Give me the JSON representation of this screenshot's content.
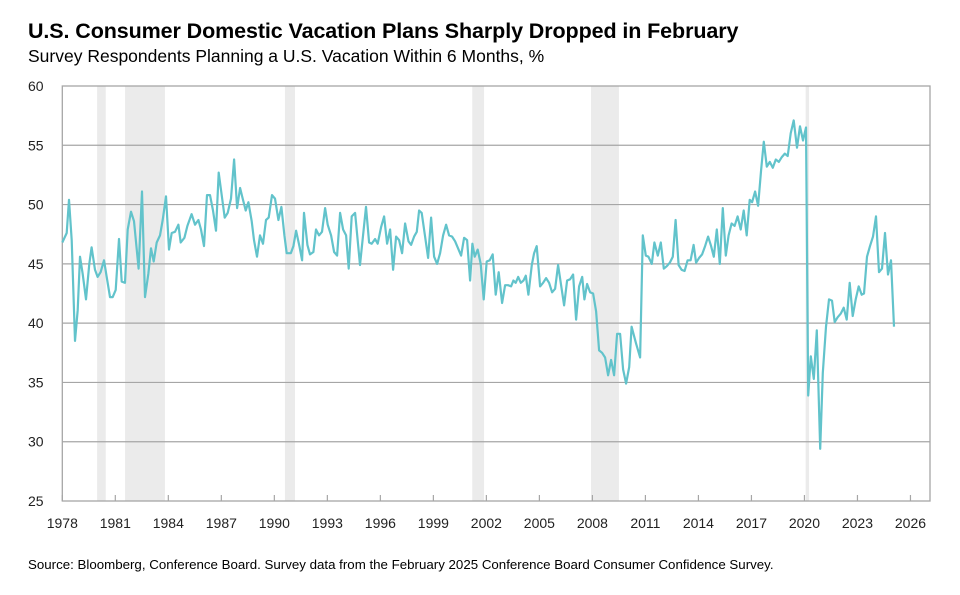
{
  "title": "U.S. Consumer Domestic Vacation Plans Sharply Dropped in February",
  "subtitle": "Survey Respondents Planning a U.S. Vacation Within 6 Months, %",
  "source": "Source: Bloomberg, Conference Board. Survey data from the February 2025 Conference Board Consumer Confidence Survey.",
  "chart_data": {
    "type": "line",
    "title": "U.S. Consumer Domestic Vacation Plans Sharply Dropped in February",
    "subtitle": "Survey Respondents Planning a U.S. Vacation Within 6 Months, %",
    "xlabel": "",
    "ylabel": "",
    "xlim": [
      1978,
      2027.1
    ],
    "ylim": [
      25,
      60
    ],
    "x_ticks": [
      1978,
      1981,
      1984,
      1987,
      1990,
      1993,
      1996,
      1999,
      2002,
      2005,
      2008,
      2011,
      2014,
      2017,
      2020,
      2023,
      2026
    ],
    "x_tick_labels": [
      "1978",
      "1981",
      "1984",
      "1987",
      "1990",
      "1993",
      "1996",
      "1999",
      "2002",
      "2005",
      "2008",
      "2011",
      "2014",
      "2017",
      "2020",
      "2023",
      "2026"
    ],
    "y_ticks": [
      25,
      30,
      35,
      40,
      45,
      50,
      55,
      60
    ],
    "y_tick_labels": [
      "25",
      "30",
      "35",
      "40",
      "45",
      "50",
      "55",
      "60"
    ],
    "grid": "horizontal",
    "line_color": "#62c3cb",
    "recession_color": "#ebebeb",
    "recession_bands": [
      [
        1979.97,
        1980.46
      ],
      [
        1981.55,
        1983.81
      ],
      [
        1990.6,
        1991.17
      ],
      [
        2001.2,
        2001.87
      ],
      [
        2007.92,
        2009.5
      ],
      [
        2020.07,
        2020.26
      ]
    ],
    "series": [
      {
        "x": [
          1978.0,
          1978.25,
          1978.38,
          1978.53,
          1978.72,
          1978.87,
          1979.0,
          1979.15,
          1979.34,
          1979.53,
          1979.66,
          1979.85,
          1980.0,
          1980.17,
          1980.36,
          1980.51,
          1980.7,
          1980.85,
          1981.02,
          1981.21,
          1981.36,
          1981.55,
          1981.7,
          1981.89,
          1982.06,
          1982.32,
          1982.51,
          1982.68,
          1982.87,
          1983.02,
          1983.17,
          1983.34,
          1983.53,
          1983.68,
          1983.87,
          1984.04,
          1984.19,
          1984.38,
          1984.57,
          1984.7,
          1984.91,
          1985.08,
          1985.32,
          1985.51,
          1985.7,
          1985.85,
          1986.02,
          1986.19,
          1986.36,
          1986.53,
          1986.7,
          1986.85,
          1987.02,
          1987.19,
          1987.36,
          1987.55,
          1987.72,
          1987.89,
          1988.06,
          1988.21,
          1988.38,
          1988.53,
          1988.72,
          1988.85,
          1989.02,
          1989.19,
          1989.36,
          1989.53,
          1989.68,
          1989.87,
          1990.04,
          1990.23,
          1990.4,
          1990.57,
          1990.7,
          1990.93,
          1991.08,
          1991.23,
          1991.42,
          1991.57,
          1991.68,
          1991.87,
          1992.02,
          1992.21,
          1992.36,
          1992.53,
          1992.7,
          1992.87,
          1993.02,
          1993.21,
          1993.38,
          1993.55,
          1993.72,
          1993.89,
          1994.06,
          1994.21,
          1994.38,
          1994.57,
          1994.85,
          1995.19,
          1995.36,
          1995.51,
          1995.7,
          1995.85,
          1996.04,
          1996.21,
          1996.38,
          1996.55,
          1996.72,
          1996.89,
          1997.06,
          1997.23,
          1997.4,
          1997.59,
          1997.74,
          1997.91,
          1998.06,
          1998.19,
          1998.34,
          1998.53,
          1998.7,
          1998.87,
          1999.04,
          1999.21,
          1999.38,
          1999.55,
          1999.72,
          1999.89,
          2000.06,
          2000.23,
          2000.4,
          2000.57,
          2000.74,
          2000.91,
          2001.08,
          2001.21,
          2001.34,
          2001.51,
          2001.68,
          2001.85,
          2002.02,
          2002.19,
          2002.36,
          2002.53,
          2002.7,
          2002.89,
          2003.06,
          2003.23,
          2003.4,
          2003.53,
          2003.66,
          2003.8,
          2003.95,
          2004.1,
          2004.23,
          2004.38,
          2004.57,
          2004.7,
          2004.85,
          2005.04,
          2005.21,
          2005.38,
          2005.55,
          2005.72,
          2005.89,
          2006.06,
          2006.23,
          2006.4,
          2006.57,
          2006.74,
          2006.91,
          2007.08,
          2007.25,
          2007.42,
          2007.55,
          2007.7,
          2007.87,
          2008.04,
          2008.21,
          2008.38,
          2008.55,
          2008.72,
          2008.89,
          2009.06,
          2009.23,
          2009.4,
          2009.57,
          2009.74,
          2009.91,
          2010.08,
          2010.22,
          2010.47,
          2010.7,
          2010.85,
          2011.02,
          2011.17,
          2011.36,
          2011.51,
          2011.7,
          2011.87,
          2012.04,
          2012.21,
          2012.38,
          2012.55,
          2012.71,
          2012.88,
          2013.05,
          2013.22,
          2013.39,
          2013.56,
          2013.73,
          2013.87,
          2014.04,
          2014.21,
          2014.38,
          2014.55,
          2014.72,
          2014.87,
          2015.04,
          2015.21,
          2015.38,
          2015.55,
          2015.71,
          2015.88,
          2016.05,
          2016.22,
          2016.39,
          2016.56,
          2016.73,
          2016.9,
          2017.04,
          2017.21,
          2017.38,
          2017.55,
          2017.7,
          2017.87,
          2018.04,
          2018.21,
          2018.38,
          2018.55,
          2018.72,
          2018.89,
          2019.05,
          2019.22,
          2019.39,
          2019.58,
          2019.75,
          2019.92,
          2020.09,
          2020.21,
          2020.36,
          2020.53,
          2020.7,
          2020.89,
          2021.04,
          2021.22,
          2021.39,
          2021.56,
          2021.71,
          2021.88,
          2022.05,
          2022.22,
          2022.39,
          2022.56,
          2022.73,
          2022.9,
          2023.07,
          2023.24,
          2023.37,
          2023.54,
          2023.71,
          2023.88,
          2024.05,
          2024.22,
          2024.39,
          2024.56,
          2024.73,
          2024.9,
          2025.07
        ],
        "y": [
          46.8,
          47.6,
          50.4,
          47.0,
          38.5,
          41.1,
          45.6,
          44.2,
          42.0,
          45.0,
          46.4,
          44.5,
          43.9,
          44.3,
          45.3,
          43.9,
          42.2,
          42.2,
          42.8,
          47.1,
          43.5,
          43.4,
          47.9,
          49.4,
          48.6,
          44.6,
          51.1,
          42.2,
          44.2,
          46.3,
          45.2,
          46.8,
          47.4,
          48.7,
          50.7,
          46.2,
          47.6,
          47.7,
          48.3,
          46.8,
          47.2,
          48.2,
          49.2,
          48.3,
          48.7,
          47.9,
          46.5,
          50.8,
          50.8,
          49.5,
          47.8,
          52.7,
          50.8,
          48.9,
          49.3,
          50.5,
          53.8,
          49.7,
          51.4,
          50.5,
          49.5,
          50.2,
          48.6,
          47.0,
          45.6,
          47.4,
          46.7,
          48.7,
          48.9,
          50.8,
          50.5,
          48.7,
          49.8,
          47.4,
          45.9,
          45.9,
          46.5,
          47.8,
          46.5,
          45.3,
          49.3,
          46.6,
          45.8,
          46.0,
          47.9,
          47.4,
          47.7,
          49.7,
          48.3,
          47.4,
          46.0,
          45.7,
          49.3,
          47.9,
          47.4,
          44.6,
          49.0,
          49.3,
          44.9,
          49.8,
          46.8,
          46.7,
          47.1,
          46.7,
          48.1,
          49.0,
          46.7,
          47.9,
          44.5,
          47.3,
          47.0,
          45.9,
          48.4,
          46.9,
          46.6,
          47.3,
          47.7,
          49.5,
          49.3,
          47.3,
          45.5,
          48.9,
          45.6,
          45.0,
          45.9,
          47.4,
          48.3,
          47.4,
          47.3,
          46.9,
          46.3,
          45.7,
          47.2,
          47.0,
          43.6,
          46.7,
          45.6,
          46.2,
          45.0,
          42.0,
          45.2,
          45.3,
          45.8,
          42.4,
          44.3,
          41.7,
          43.2,
          43.2,
          43.1,
          43.6,
          43.4,
          43.9,
          43.4,
          43.6,
          44.0,
          42.4,
          44.9,
          45.9,
          46.5,
          43.1,
          43.4,
          43.8,
          43.4,
          42.6,
          42.9,
          44.9,
          43.2,
          41.5,
          43.6,
          43.7,
          44.1,
          40.3,
          43.1,
          43.9,
          42.0,
          43.3,
          42.6,
          42.5,
          41.0,
          37.7,
          37.5,
          37.1,
          35.6,
          36.9,
          35.6,
          39.1,
          39.1,
          36.1,
          34.9,
          36.3,
          39.7,
          38.3,
          37.1,
          47.4,
          45.7,
          45.6,
          45.0,
          46.8,
          45.7,
          46.8,
          44.6,
          44.8,
          45.1,
          45.6,
          48.7,
          44.9,
          44.5,
          44.4,
          45.3,
          45.3,
          46.6,
          45.1,
          45.5,
          45.8,
          46.5,
          47.3,
          46.5,
          45.6,
          47.9,
          45.0,
          49.7,
          45.7,
          47.4,
          48.4,
          48.2,
          49.0,
          47.9,
          49.5,
          47.4,
          50.4,
          50.2,
          51.1,
          49.9,
          52.9,
          55.3,
          53.2,
          53.6,
          53.1,
          53.8,
          53.6,
          54.0,
          54.3,
          54.1,
          56.0,
          57.1,
          54.8,
          56.6,
          55.4,
          56.5,
          33.9,
          37.2,
          35.3,
          39.4,
          29.4,
          35.8,
          39.7,
          42.0,
          41.9,
          40.1,
          40.5,
          40.8,
          41.3,
          40.3,
          43.4,
          40.6,
          42.0,
          43.1,
          42.4,
          42.5,
          45.6,
          46.5,
          47.3,
          49.0,
          44.3,
          44.6,
          47.6,
          44.1,
          45.3,
          39.7
        ]
      }
    ]
  }
}
